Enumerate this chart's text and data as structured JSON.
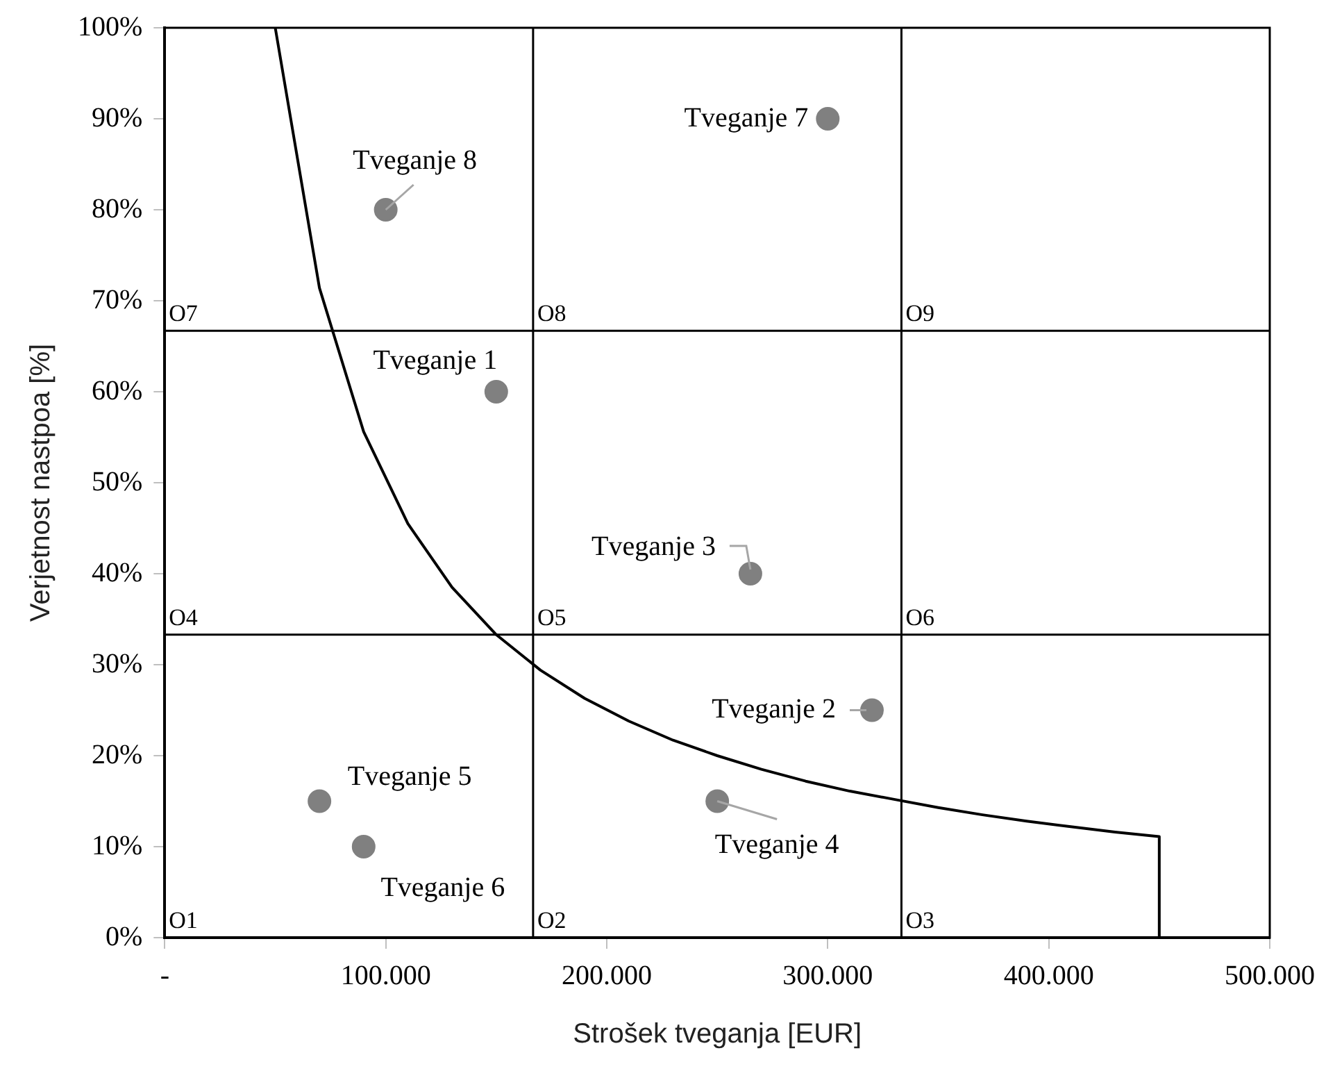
{
  "chart_data": {
    "type": "scatter",
    "xlabel": "Strošek tveganja [EUR]",
    "ylabel": "Verjetnost nastpoa [%]",
    "xlim": [
      0,
      500000
    ],
    "xticks": [
      {
        "value": 0,
        "label": "-"
      },
      {
        "value": 100000,
        "label": "100.000"
      },
      {
        "value": 200000,
        "label": "200.000"
      },
      {
        "value": 300000,
        "label": "300.000"
      },
      {
        "value": 400000,
        "label": "400.000"
      },
      {
        "value": 500000,
        "label": "500.000"
      }
    ],
    "ylim": [
      0,
      100
    ],
    "yticks": [
      {
        "value": 0,
        "label": "0%"
      },
      {
        "value": 10,
        "label": "10%"
      },
      {
        "value": 20,
        "label": "20%"
      },
      {
        "value": 30,
        "label": "30%"
      },
      {
        "value": 40,
        "label": "40%"
      },
      {
        "value": 50,
        "label": "50%"
      },
      {
        "value": 60,
        "label": "60%"
      },
      {
        "value": 70,
        "label": "70%"
      },
      {
        "value": 80,
        "label": "80%"
      },
      {
        "value": 90,
        "label": "90%"
      },
      {
        "value": 100,
        "label": "100%"
      }
    ],
    "grid": false,
    "legend": false,
    "series": [
      {
        "type": "line",
        "color": "#000000",
        "marker": "none",
        "line_style": "solid",
        "x": [
          50000,
          70000,
          90000,
          110000,
          130000,
          150000,
          170000,
          190000,
          210000,
          230000,
          250000,
          270000,
          290000,
          310000,
          330000,
          350000,
          370000,
          390000,
          410000,
          430000,
          450000,
          450000
        ],
        "values": [
          100,
          71.4,
          55.6,
          45.5,
          38.5,
          33.3,
          29.4,
          26.3,
          23.8,
          21.7,
          20,
          18.5,
          17.2,
          16.1,
          15.2,
          14.3,
          13.5,
          12.8,
          12.2,
          11.6,
          11.1,
          0
        ]
      },
      {
        "color": "#808080",
        "marker": "circle",
        "x": [
          150000,
          320000,
          265000,
          250000,
          70000,
          90000,
          300000,
          100000
        ],
        "values": [
          60,
          25,
          40,
          15,
          15,
          10,
          90,
          80
        ]
      }
    ],
    "ref_lines": [
      {
        "axis": "x",
        "value": 166667,
        "color": "#000000"
      },
      {
        "axis": "x",
        "value": 333333,
        "color": "#000000"
      },
      {
        "axis": "y",
        "value": 33.3,
        "color": "#000000"
      },
      {
        "axis": "y",
        "value": 66.7,
        "color": "#000000"
      }
    ],
    "annotations": [
      {
        "text": "Tveganje 1",
        "x": 150000,
        "y": 60
      },
      {
        "text": "Tveganje 2",
        "x": 320000,
        "y": 25
      },
      {
        "text": "Tveganje 3",
        "x": 265000,
        "y": 40
      },
      {
        "text": "Tveganje 4",
        "x": 250000,
        "y": 15
      },
      {
        "text": "Tveganje 5",
        "x": 70000,
        "y": 15
      },
      {
        "text": "Tveganje 6",
        "x": 90000,
        "y": 10
      },
      {
        "text": "Tveganje 7",
        "x": 300000,
        "y": 90
      },
      {
        "text": "Tveganje 8",
        "x": 100000,
        "y": 80
      },
      "O1",
      "O2",
      "O3",
      "O4",
      "O5",
      "O6",
      "O7",
      "O8",
      "O9"
    ]
  }
}
